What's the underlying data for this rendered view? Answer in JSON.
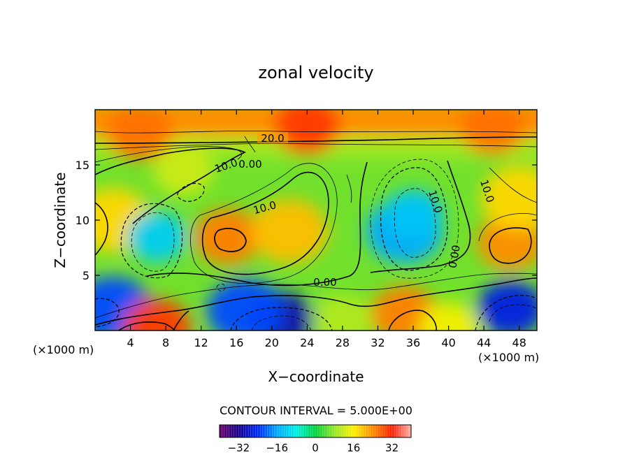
{
  "chart_data": {
    "type": "heatmap",
    "title": "zonal velocity",
    "xlabel": "X−coordinate",
    "ylabel": "Z−coordinate",
    "x_unit_left": "(×1000 m)",
    "x_unit_right": "(×1000 m)",
    "xlim": [
      0,
      50
    ],
    "ylim": [
      0,
      20
    ],
    "x_ticks": [
      4,
      8,
      12,
      16,
      20,
      24,
      28,
      32,
      36,
      40,
      44,
      48
    ],
    "y_ticks": [
      5,
      10,
      15
    ],
    "contour_interval_text": "CONTOUR INTERVAL = 5.000E+00",
    "contour_labels": [
      "20.0",
      "10.0",
      "0.00",
      "10.0",
      "10.0",
      "−10.0",
      "10.0",
      "0.00",
      "0.00"
    ],
    "colorbar": {
      "range": [
        -40,
        40
      ],
      "tick_values": [
        -32,
        -16,
        0,
        16,
        32
      ],
      "tick_labels": [
        "−32",
        "−16",
        "0",
        "16",
        "32"
      ]
    },
    "field_features": [
      {
        "x": 24,
        "z": 18.5,
        "value": 30
      },
      {
        "x": 5,
        "z": 18,
        "value": 26
      },
      {
        "x": 45,
        "z": 18.5,
        "value": 26
      },
      {
        "x": 15,
        "z": 8.5,
        "value": 25
      },
      {
        "x": 22,
        "z": 9,
        "value": 20
      },
      {
        "x": 47,
        "z": 8,
        "value": 24
      },
      {
        "x": 2,
        "z": 10,
        "value": 18
      },
      {
        "x": 48,
        "z": 12,
        "value": 18
      },
      {
        "x": 10,
        "z": 14.5,
        "value": 12
      },
      {
        "x": 7,
        "z": 8.5,
        "value": -12
      },
      {
        "x": 35,
        "z": 9,
        "value": -16
      },
      {
        "x": 36,
        "z": 10.5,
        "value": -13
      },
      {
        "x": 21,
        "z": 1,
        "value": -30
      },
      {
        "x": 17,
        "z": 1.8,
        "value": -22
      },
      {
        "x": 47,
        "z": 2,
        "value": -26
      },
      {
        "x": 2,
        "z": 2,
        "value": -22
      },
      {
        "x": 7,
        "z": 0.3,
        "value": 30
      },
      {
        "x": 35,
        "z": 1.5,
        "value": 25
      },
      {
        "x": 40,
        "z": 0.3,
        "value": 15
      },
      {
        "x": 28,
        "z": 1,
        "value": 10
      }
    ]
  }
}
